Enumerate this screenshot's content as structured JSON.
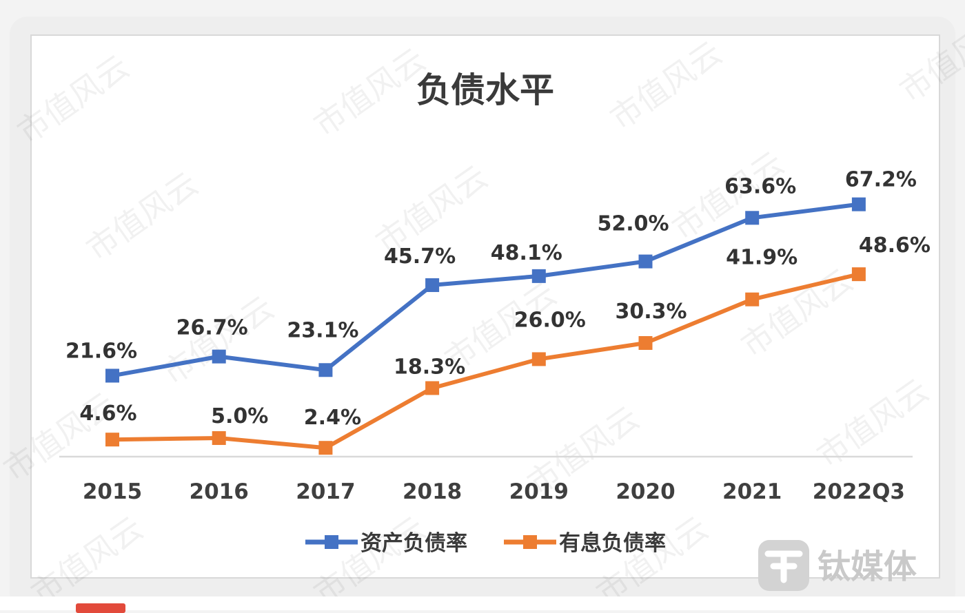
{
  "colors": {
    "series_blue": "#4472C4",
    "series_orange": "#ED7D31",
    "axis": "#d9d9d9",
    "background": "#ffffff"
  },
  "watermark_text": "市值风云",
  "brand": {
    "name": "钛媒体",
    "icon": "tmt-logo-icon"
  },
  "chart_data": {
    "type": "line",
    "title": "负债水平",
    "xlabel": "",
    "ylabel": "",
    "categories": [
      "2015",
      "2016",
      "2017",
      "2018",
      "2019",
      "2020",
      "2021",
      "2022Q3"
    ],
    "ylim": [
      0,
      70
    ],
    "grid": false,
    "legend_position": "bottom",
    "series": [
      {
        "name": "资产负债率",
        "color": "#4472C4",
        "values": [
          21.6,
          26.7,
          23.1,
          45.7,
          48.1,
          52.0,
          63.6,
          67.2
        ],
        "labels": [
          "21.6%",
          "26.7%",
          "23.1%",
          "45.7%",
          "48.1%",
          "52.0%",
          "63.6%",
          "67.2%"
        ]
      },
      {
        "name": "有息负债率",
        "color": "#ED7D31",
        "values": [
          4.6,
          5.0,
          2.4,
          18.3,
          26.0,
          30.3,
          41.9,
          48.6
        ],
        "labels": [
          "4.6%",
          "5.0%",
          "2.4%",
          "18.3%",
          "26.0%",
          "30.3%",
          "41.9%",
          "48.6%"
        ]
      }
    ]
  }
}
